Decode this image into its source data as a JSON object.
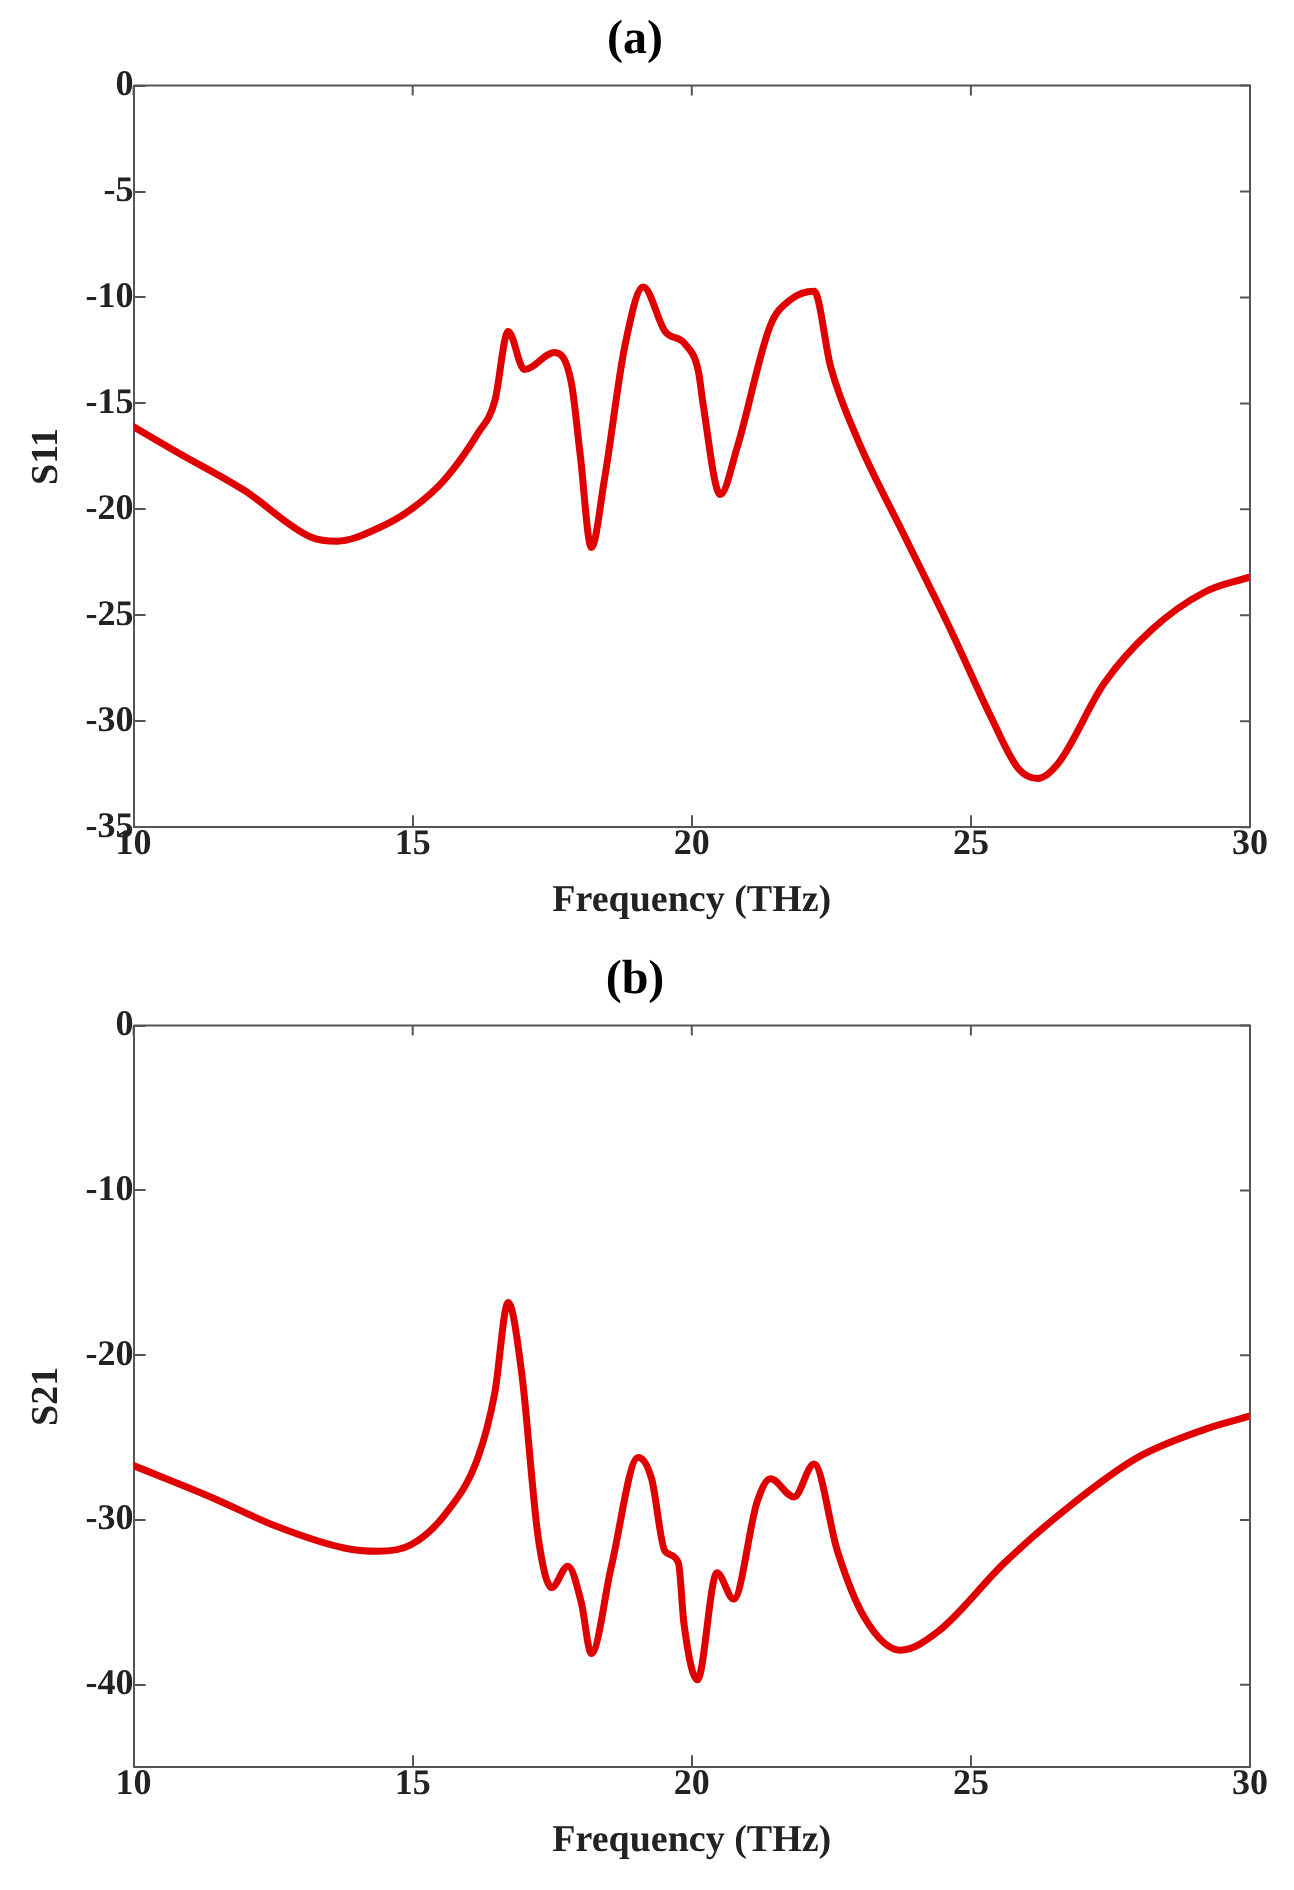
{
  "chart_data": [
    {
      "type": "line",
      "title": "(a)",
      "xlabel": "Frequency (THz)",
      "ylabel": "S11",
      "xlim": [
        10,
        30
      ],
      "xticks": [
        10,
        15,
        20,
        25,
        30
      ],
      "ylim": [
        -35,
        0
      ],
      "yticks": [
        0,
        -5,
        -10,
        -15,
        -20,
        -25,
        -30,
        -35
      ],
      "grid": false,
      "legend": false,
      "marker": "none",
      "line_style": "solid",
      "series": [
        {
          "color": "#e00000",
          "x": [
            10,
            10.78,
            11.98,
            13.17,
            13.65,
            14.37,
            14.97,
            15.57,
            16.17,
            16.47,
            16.71,
            17.0,
            17.54,
            17.84,
            18.0,
            18.2,
            18.44,
            18.8,
            19.13,
            19.52,
            19.88,
            20.12,
            20.2,
            20.51,
            20.81,
            21.41,
            21.77,
            22.19,
            22.49,
            22.97,
            23.8,
            24.64,
            25.36,
            25.84,
            26.2,
            26.56,
            27.39,
            28.23,
            29.19,
            29.99
          ],
          "values": [
            -16.1,
            -17.3,
            -19.1,
            -21.3,
            -21.5,
            -20.9,
            -20.0,
            -18.6,
            -16.4,
            -14.9,
            -11.6,
            -13.4,
            -12.6,
            -14.0,
            -17.4,
            -21.8,
            -18.5,
            -12.3,
            -9.5,
            -11.6,
            -12.2,
            -13.5,
            -15.0,
            -19.3,
            -17.1,
            -11.3,
            -10.1,
            -9.7,
            -13.3,
            -16.7,
            -21.2,
            -25.7,
            -29.8,
            -32.2,
            -32.7,
            -32.0,
            -28.2,
            -25.7,
            -23.9,
            -23.2
          ]
        }
      ]
    },
    {
      "type": "line",
      "title": "(b)",
      "xlabel": "Frequency (THz)",
      "ylabel": "S21",
      "xlim": [
        10,
        30
      ],
      "xticks": [
        10,
        15,
        20,
        25,
        30
      ],
      "ylim": [
        -45,
        0
      ],
      "yticks": [
        0,
        -10,
        -20,
        -30,
        -40
      ],
      "grid": false,
      "legend": false,
      "marker": "none",
      "line_style": "solid",
      "series": [
        {
          "color": "#e00000",
          "x": [
            10,
            11.38,
            12.57,
            13.77,
            14.37,
            14.97,
            15.57,
            16.17,
            16.47,
            16.71,
            16.95,
            17.25,
            17.49,
            17.78,
            18.02,
            18.2,
            18.56,
            19.04,
            19.28,
            19.52,
            19.76,
            19.86,
            20.1,
            20.45,
            20.75,
            21.17,
            21.41,
            21.83,
            22.19,
            22.61,
            23.09,
            23.74,
            24.4,
            25.6,
            26.79,
            27.99,
            29.19,
            29.99
          ],
          "values": [
            -26.7,
            -28.6,
            -30.4,
            -31.7,
            -31.9,
            -31.5,
            -29.7,
            -26.2,
            -22.3,
            -16.8,
            -21.0,
            -31.1,
            -34.1,
            -32.8,
            -35.0,
            -38.1,
            -32.8,
            -26.2,
            -27.5,
            -31.9,
            -32.6,
            -36.3,
            -39.7,
            -33.2,
            -34.8,
            -28.9,
            -27.5,
            -28.6,
            -26.6,
            -31.9,
            -35.9,
            -37.9,
            -36.8,
            -32.6,
            -29.1,
            -26.2,
            -24.5,
            -23.7
          ]
        }
      ]
    }
  ]
}
